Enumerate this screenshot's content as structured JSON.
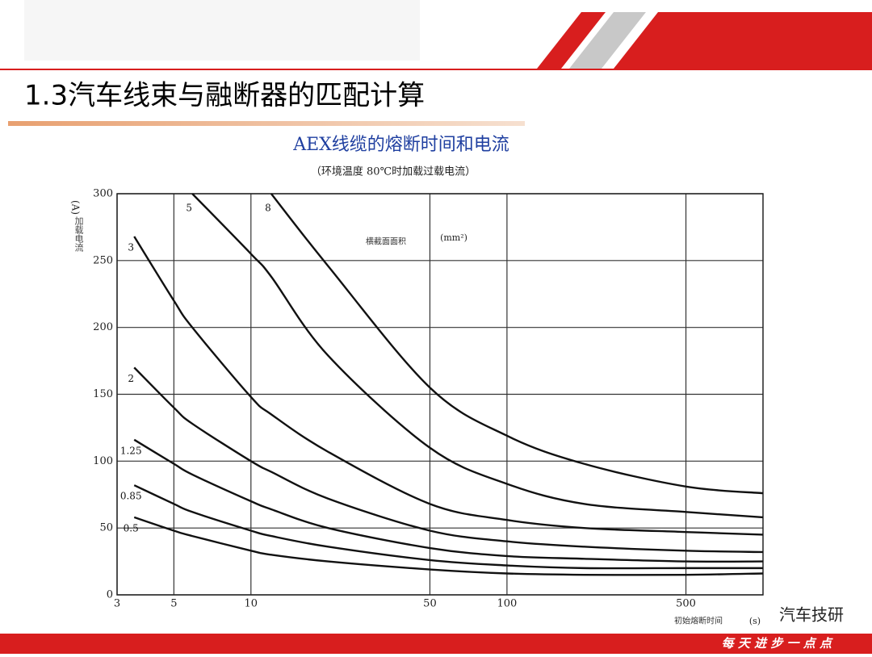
{
  "slide": {
    "title": "1.3汽车线束与融断器的匹配计算",
    "footer": "每 天 进 步 一 点 点",
    "watermark": "汽车技研"
  },
  "chart_data": {
    "type": "line",
    "title": "AEX线缆的熔断时间和电流",
    "subtitle": "（环境温度 80℃时加载过载电流）",
    "y_label": "加载电流",
    "y_unit": "(A)",
    "x_label": "初始熔断时间",
    "x_unit": "(s)",
    "annotation": "横截面面积",
    "annotation_unit": "(mm²)",
    "xscale": "log",
    "grid": true,
    "x": [
      3.5,
      5,
      5.9,
      10,
      12,
      20,
      50,
      100,
      200,
      500,
      1000
    ],
    "xlim": [
      3,
      1000
    ],
    "xticks": [
      3,
      5,
      10,
      50,
      100,
      500
    ],
    "ylim": [
      0,
      300
    ],
    "yticks": [
      0,
      50,
      100,
      150,
      200,
      250,
      300
    ],
    "series": [
      {
        "name": "0.5",
        "color": "#111111",
        "values": [
          58,
          48,
          44,
          33,
          30,
          25,
          19,
          16,
          15,
          15,
          16
        ]
      },
      {
        "name": "0.85",
        "color": "#111111",
        "values": [
          82,
          68,
          62,
          48,
          44,
          36,
          26,
          22,
          20,
          20,
          20
        ]
      },
      {
        "name": "1.25",
        "color": "#111111",
        "values": [
          116,
          98,
          90,
          70,
          64,
          50,
          35,
          29,
          27,
          25,
          25
        ]
      },
      {
        "name": "2",
        "color": "#111111",
        "values": [
          170,
          140,
          128,
          100,
          92,
          72,
          48,
          40,
          36,
          33,
          32
        ]
      },
      {
        "name": "3",
        "color": "#111111",
        "values": [
          268,
          220,
          200,
          148,
          135,
          107,
          68,
          56,
          50,
          47,
          45
        ]
      },
      {
        "name": "5",
        "color": "#111111",
        "values": [
          null,
          null,
          300,
          255,
          238,
          179,
          110,
          83,
          68,
          62,
          58
        ]
      },
      {
        "name": "8",
        "color": "#111111",
        "values": [
          null,
          null,
          null,
          null,
          300,
          246,
          155,
          119,
          98,
          81,
          76
        ]
      }
    ]
  }
}
